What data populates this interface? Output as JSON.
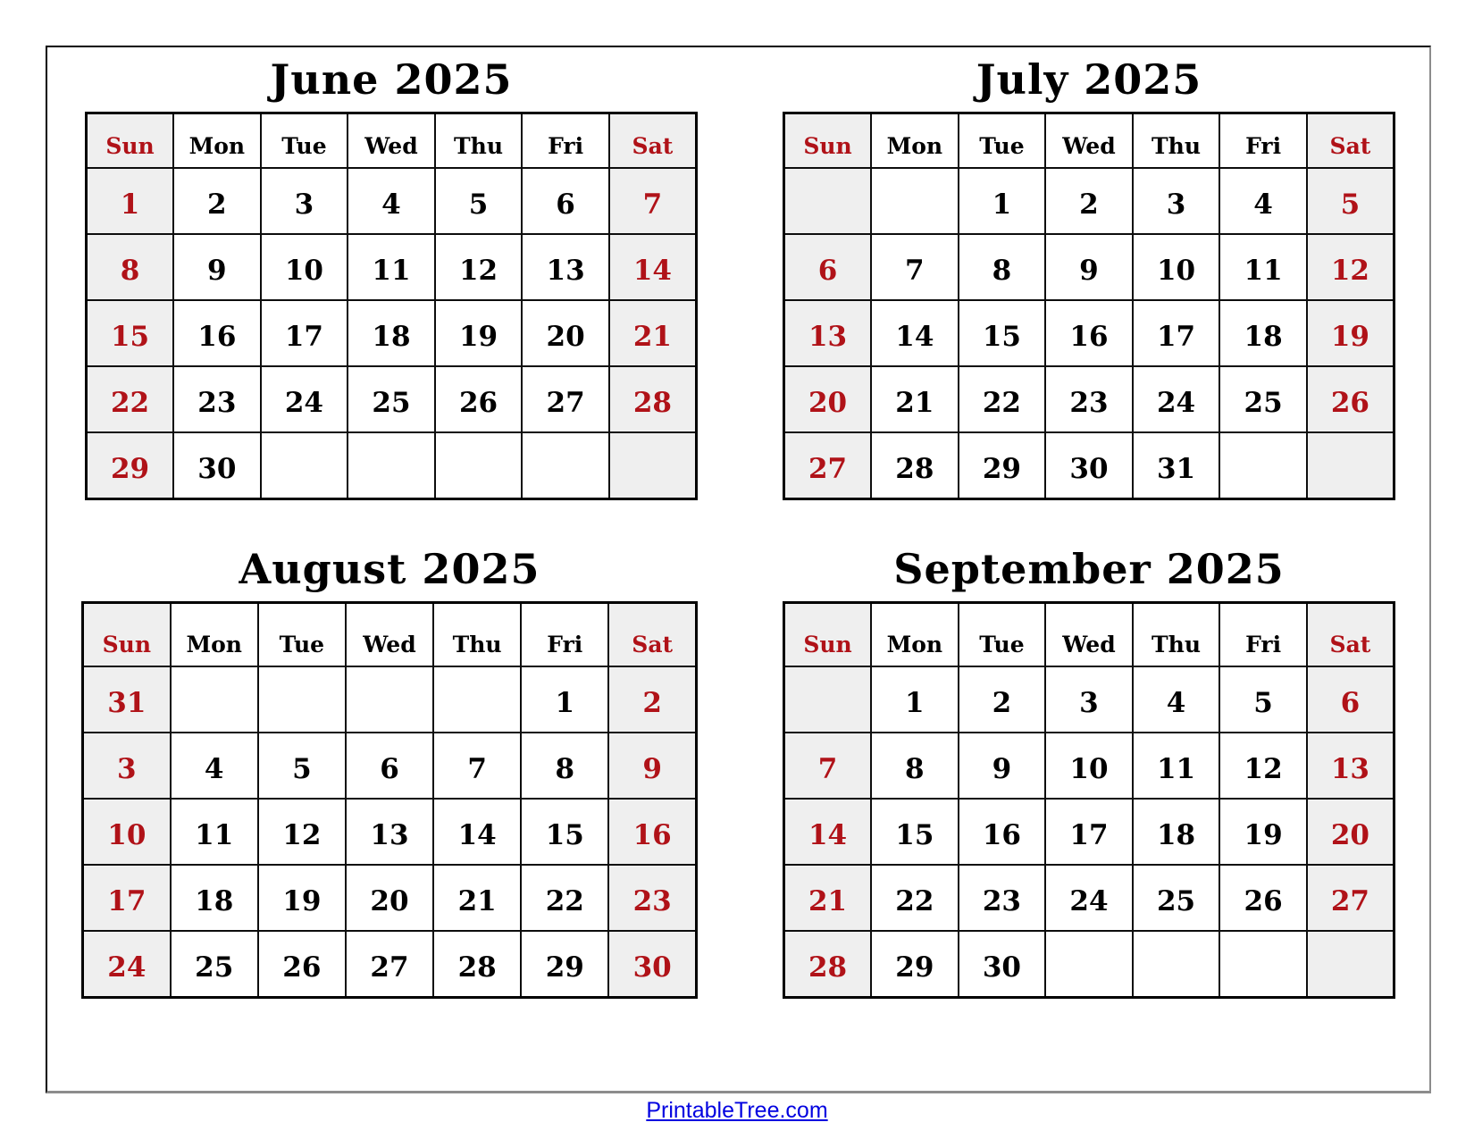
{
  "calendar": {
    "day_headers": [
      "Sun",
      "Mon",
      "Tue",
      "Wed",
      "Thu",
      "Fri",
      "Sat"
    ],
    "weekend_columns": [
      0,
      6
    ],
    "months": [
      {
        "name": "june",
        "title": "June 2025",
        "weeks": [
          [
            "1",
            "2",
            "3",
            "4",
            "5",
            "6",
            "7"
          ],
          [
            "8",
            "9",
            "10",
            "11",
            "12",
            "13",
            "14"
          ],
          [
            "15",
            "16",
            "17",
            "18",
            "19",
            "20",
            "21"
          ],
          [
            "22",
            "23",
            "24",
            "25",
            "26",
            "27",
            "28"
          ],
          [
            "29",
            "30",
            "",
            "",
            "",
            "",
            ""
          ]
        ]
      },
      {
        "name": "july",
        "title": "July 2025",
        "weeks": [
          [
            "",
            "",
            "1",
            "2",
            "3",
            "4",
            "5"
          ],
          [
            "6",
            "7",
            "8",
            "9",
            "10",
            "11",
            "12"
          ],
          [
            "13",
            "14",
            "15",
            "16",
            "17",
            "18",
            "19"
          ],
          [
            "20",
            "21",
            "22",
            "23",
            "24",
            "25",
            "26"
          ],
          [
            "27",
            "28",
            "29",
            "30",
            "31",
            "",
            ""
          ]
        ]
      },
      {
        "name": "august",
        "title": "August 2025",
        "weeks": [
          [
            "31",
            "",
            "",
            "",
            "",
            "1",
            "2"
          ],
          [
            "3",
            "4",
            "5",
            "6",
            "7",
            "8",
            "9"
          ],
          [
            "10",
            "11",
            "12",
            "13",
            "14",
            "15",
            "16"
          ],
          [
            "17",
            "18",
            "19",
            "20",
            "21",
            "22",
            "23"
          ],
          [
            "24",
            "25",
            "26",
            "27",
            "28",
            "29",
            "30"
          ]
        ]
      },
      {
        "name": "september",
        "title": "September 2025",
        "weeks": [
          [
            "",
            "1",
            "2",
            "3",
            "4",
            "5",
            "6"
          ],
          [
            "7",
            "8",
            "9",
            "10",
            "11",
            "12",
            "13"
          ],
          [
            "14",
            "15",
            "16",
            "17",
            "18",
            "19",
            "20"
          ],
          [
            "21",
            "22",
            "23",
            "24",
            "25",
            "26",
            "27"
          ],
          [
            "28",
            "29",
            "30",
            "",
            "",
            "",
            ""
          ]
        ]
      }
    ]
  },
  "footer": {
    "link_text": "PrintableTree.com"
  },
  "colors": {
    "weekend_text": "#b01218",
    "weekend_bg": "#efefef",
    "grid_border": "#000000",
    "outer_frame_shadow": "#8c8c8c",
    "title_text": "#000000",
    "link_blue": "#0202e0"
  }
}
